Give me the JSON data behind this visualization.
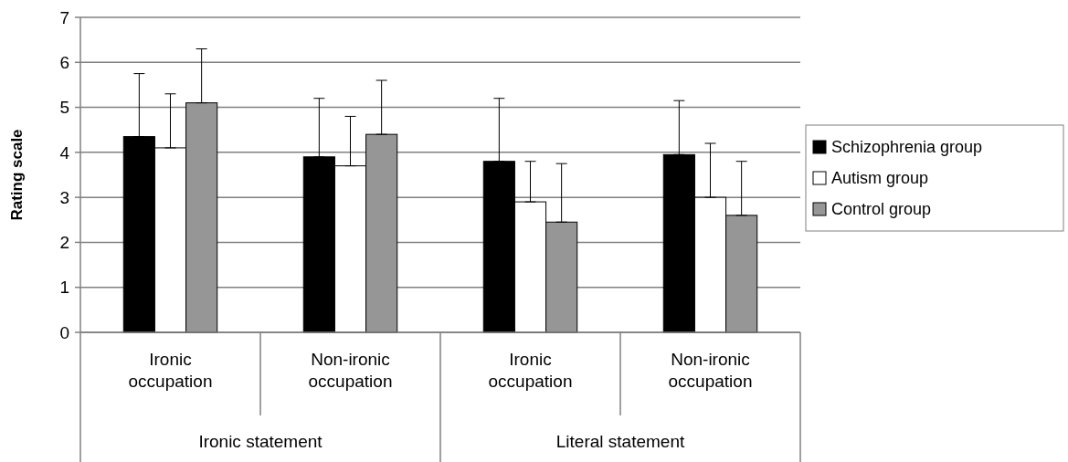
{
  "chart_data": {
    "type": "bar",
    "ylabel": "Rating scale",
    "categories": [
      "Ironic occupation",
      "Non-ironic occupation",
      "Ironic occupation",
      "Non-ironic occupation"
    ],
    "series": [
      {
        "name": "Schizophrenia group",
        "color": "#000000",
        "values": [
          4.35,
          3.9,
          3.8,
          3.95
        ],
        "errors": [
          [
            4.35,
            5.75
          ],
          [
            3.9,
            5.2
          ],
          [
            3.8,
            5.2
          ],
          [
            3.95,
            5.15
          ]
        ]
      },
      {
        "name": "Autism group",
        "color": "#ffffff",
        "values": [
          4.1,
          3.7,
          2.9,
          3.0
        ],
        "errors": [
          [
            4.1,
            5.3
          ],
          [
            3.7,
            4.8
          ],
          [
            2.9,
            3.8
          ],
          [
            3.0,
            4.2
          ]
        ]
      },
      {
        "name": "Control group",
        "color": "#969696",
        "values": [
          5.1,
          4.4,
          2.45,
          2.6
        ],
        "errors": [
          [
            5.1,
            6.3
          ],
          [
            4.4,
            5.6
          ],
          [
            2.45,
            3.75
          ],
          [
            2.6,
            3.8
          ]
        ]
      }
    ],
    "annotations": [
      "Ironic statement",
      "Literal statement"
    ],
    "ylim": [
      0,
      7
    ],
    "yticks": [
      0,
      1,
      2,
      3,
      4,
      5,
      6,
      7
    ],
    "grid": "y",
    "legend": "right"
  }
}
